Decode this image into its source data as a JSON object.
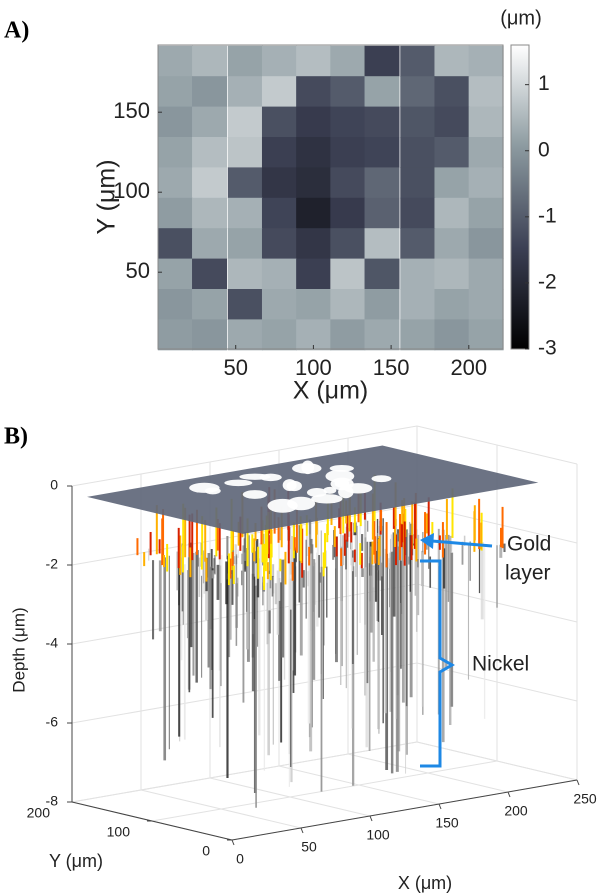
{
  "chart_data": [
    {
      "type": "heatmap",
      "panel_label": "A)",
      "xlabel": "X (μm)",
      "ylabel": "Y (μm)",
      "x": [
        11,
        33,
        56,
        78,
        100,
        122,
        144,
        167,
        189,
        211
      ],
      "y": [
        182,
        163,
        144,
        125,
        106,
        87,
        68,
        49,
        30,
        11
      ],
      "z": [
        [
          0.3,
          0.5,
          0.2,
          0.4,
          0.6,
          0.3,
          -1.5,
          -1.0,
          0.5,
          0.4
        ],
        [
          0.2,
          0.0,
          0.4,
          0.8,
          -1.3,
          -1.0,
          0.2,
          -0.8,
          -1.2,
          0.6
        ],
        [
          0.0,
          0.3,
          0.8,
          -1.2,
          -1.6,
          -1.4,
          -1.3,
          -1.1,
          -1.3,
          0.5
        ],
        [
          0.2,
          0.6,
          0.7,
          -1.5,
          -1.8,
          -1.5,
          -1.4,
          -1.2,
          -1.0,
          0.3
        ],
        [
          0.3,
          0.8,
          -1.0,
          -1.7,
          -1.9,
          -1.3,
          -0.8,
          -1.2,
          0.2,
          0.4
        ],
        [
          0.1,
          0.5,
          0.4,
          -1.4,
          -2.2,
          -1.6,
          -0.9,
          -1.3,
          0.5,
          0.2
        ],
        [
          -1.2,
          0.3,
          0.2,
          -1.3,
          -1.7,
          -1.2,
          0.6,
          -1.0,
          0.3,
          0.0
        ],
        [
          0.2,
          -1.3,
          0.5,
          0.4,
          -1.5,
          0.7,
          -1.1,
          0.4,
          0.5,
          0.3
        ],
        [
          0.0,
          0.2,
          -1.2,
          0.3,
          0.2,
          0.5,
          0.1,
          0.4,
          0.2,
          0.3
        ],
        [
          0.1,
          0.0,
          0.3,
          0.2,
          0.4,
          0.1,
          0.3,
          0.2,
          0.0,
          0.2
        ]
      ],
      "xlim": [
        0,
        222
      ],
      "ylim": [
        2,
        192
      ],
      "xticks": [
        50,
        100,
        150,
        200
      ],
      "yticks": [
        50,
        100,
        150
      ],
      "clim": [
        -3,
        1.6
      ],
      "cticks": [
        1,
        0,
        -1,
        -2,
        -3
      ],
      "clabel": "(μm)",
      "colormap": [
        "#000000",
        "#3c4054",
        "#8c9aa0",
        "#ffffff"
      ]
    },
    {
      "type": "surface3d",
      "panel_label": "B)",
      "xlabel": "X (μm)",
      "ylabel": "Y (μm)",
      "zlabel": "Depth (μm)",
      "xlim": [
        0,
        250
      ],
      "ylim": [
        0,
        200
      ],
      "zlim": [
        -8,
        0
      ],
      "xticks": [
        0,
        50,
        100,
        150,
        200,
        250
      ],
      "yticks": [
        0,
        100,
        200
      ],
      "zticks": [
        0,
        -2,
        -4,
        -6,
        -8
      ],
      "annotations": [
        "Gold",
        "layer",
        "Nickel"
      ],
      "grid": true
    }
  ]
}
